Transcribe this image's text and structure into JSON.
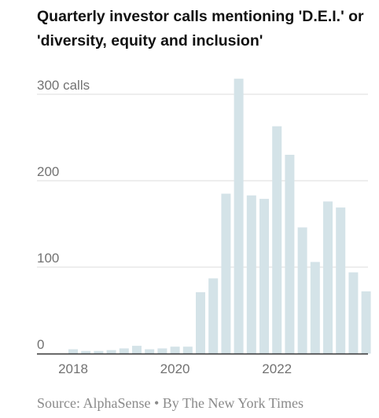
{
  "title": "Quarterly investor calls mentioning 'D.E.I.' or 'diversity, equity and inclusion'",
  "source": "Source: AlphaSense • By The New York Times",
  "colors": {
    "bar": "#d4e3e8",
    "grid": "#dddddd",
    "axis": "#333333",
    "text": "#727272"
  },
  "chart_data": {
    "type": "bar",
    "title": "Quarterly investor calls mentioning 'D.E.I.' or 'diversity, equity and inclusion'",
    "x_tick_labels": [
      "2018",
      "2020",
      "2022"
    ],
    "y_tick_labels": [
      "0",
      "100",
      "200",
      "300 calls"
    ],
    "y_ticks": [
      0,
      100,
      200,
      300
    ],
    "ylim": [
      0,
      320
    ],
    "grid": true,
    "quarters": [
      "2018 Q1",
      "2018 Q2",
      "2018 Q3",
      "2018 Q4",
      "2019 Q1",
      "2019 Q2",
      "2019 Q3",
      "2019 Q4",
      "2020 Q1",
      "2020 Q2",
      "2020 Q3",
      "2020 Q4",
      "2021 Q1",
      "2021 Q2",
      "2021 Q3",
      "2021 Q4",
      "2022 Q1",
      "2022 Q2",
      "2022 Q3",
      "2022 Q4",
      "2023 Q1",
      "2023 Q2",
      "2023 Q3",
      "2023 Q4"
    ],
    "values": [
      5,
      3,
      3,
      4,
      6,
      9,
      5,
      6,
      8,
      8,
      71,
      87,
      185,
      318,
      183,
      179,
      263,
      230,
      146,
      106,
      176,
      169,
      94,
      72
    ]
  }
}
